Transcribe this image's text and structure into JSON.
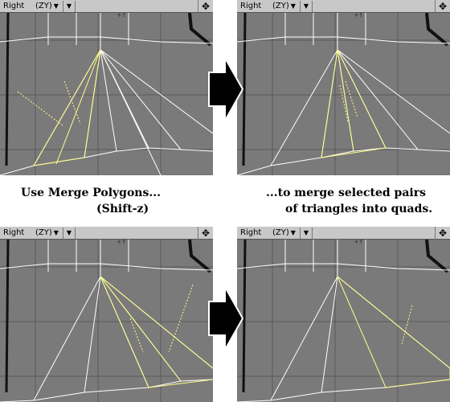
{
  "viewports": [
    {
      "id": "top-left",
      "name": "Right",
      "axis": "(ZY)",
      "y_label": "+Y",
      "move_icon": "move-arrows-icon",
      "menu_icon": "dropdown-triangle-icon"
    },
    {
      "id": "top-right",
      "name": "Right",
      "axis": "(ZY)",
      "y_label": "+Y",
      "move_icon": "move-arrows-icon",
      "menu_icon": "dropdown-triangle-icon"
    },
    {
      "id": "bottom-left",
      "name": "Right",
      "axis": "(ZY)",
      "y_label": "+Y",
      "move_icon": "move-arrows-icon",
      "menu_icon": "dropdown-triangle-icon"
    },
    {
      "id": "bottom-right",
      "name": "Right",
      "axis": "(ZY)",
      "y_label": "+Y",
      "move_icon": "move-arrows-icon",
      "menu_icon": "dropdown-triangle-icon"
    }
  ],
  "captions": {
    "left_line1": "Use Merge Polygons...",
    "left_line2": "(Shift-z)",
    "right_line1": "...to merge selected pairs",
    "right_line2": "of triangles into quads."
  },
  "colors": {
    "viewport_bg": "#7a7a7a",
    "header_bg": "#c8c8c8",
    "grid": "#5a5a5a",
    "wire": "#ffffff",
    "selected": "#ffff88"
  }
}
